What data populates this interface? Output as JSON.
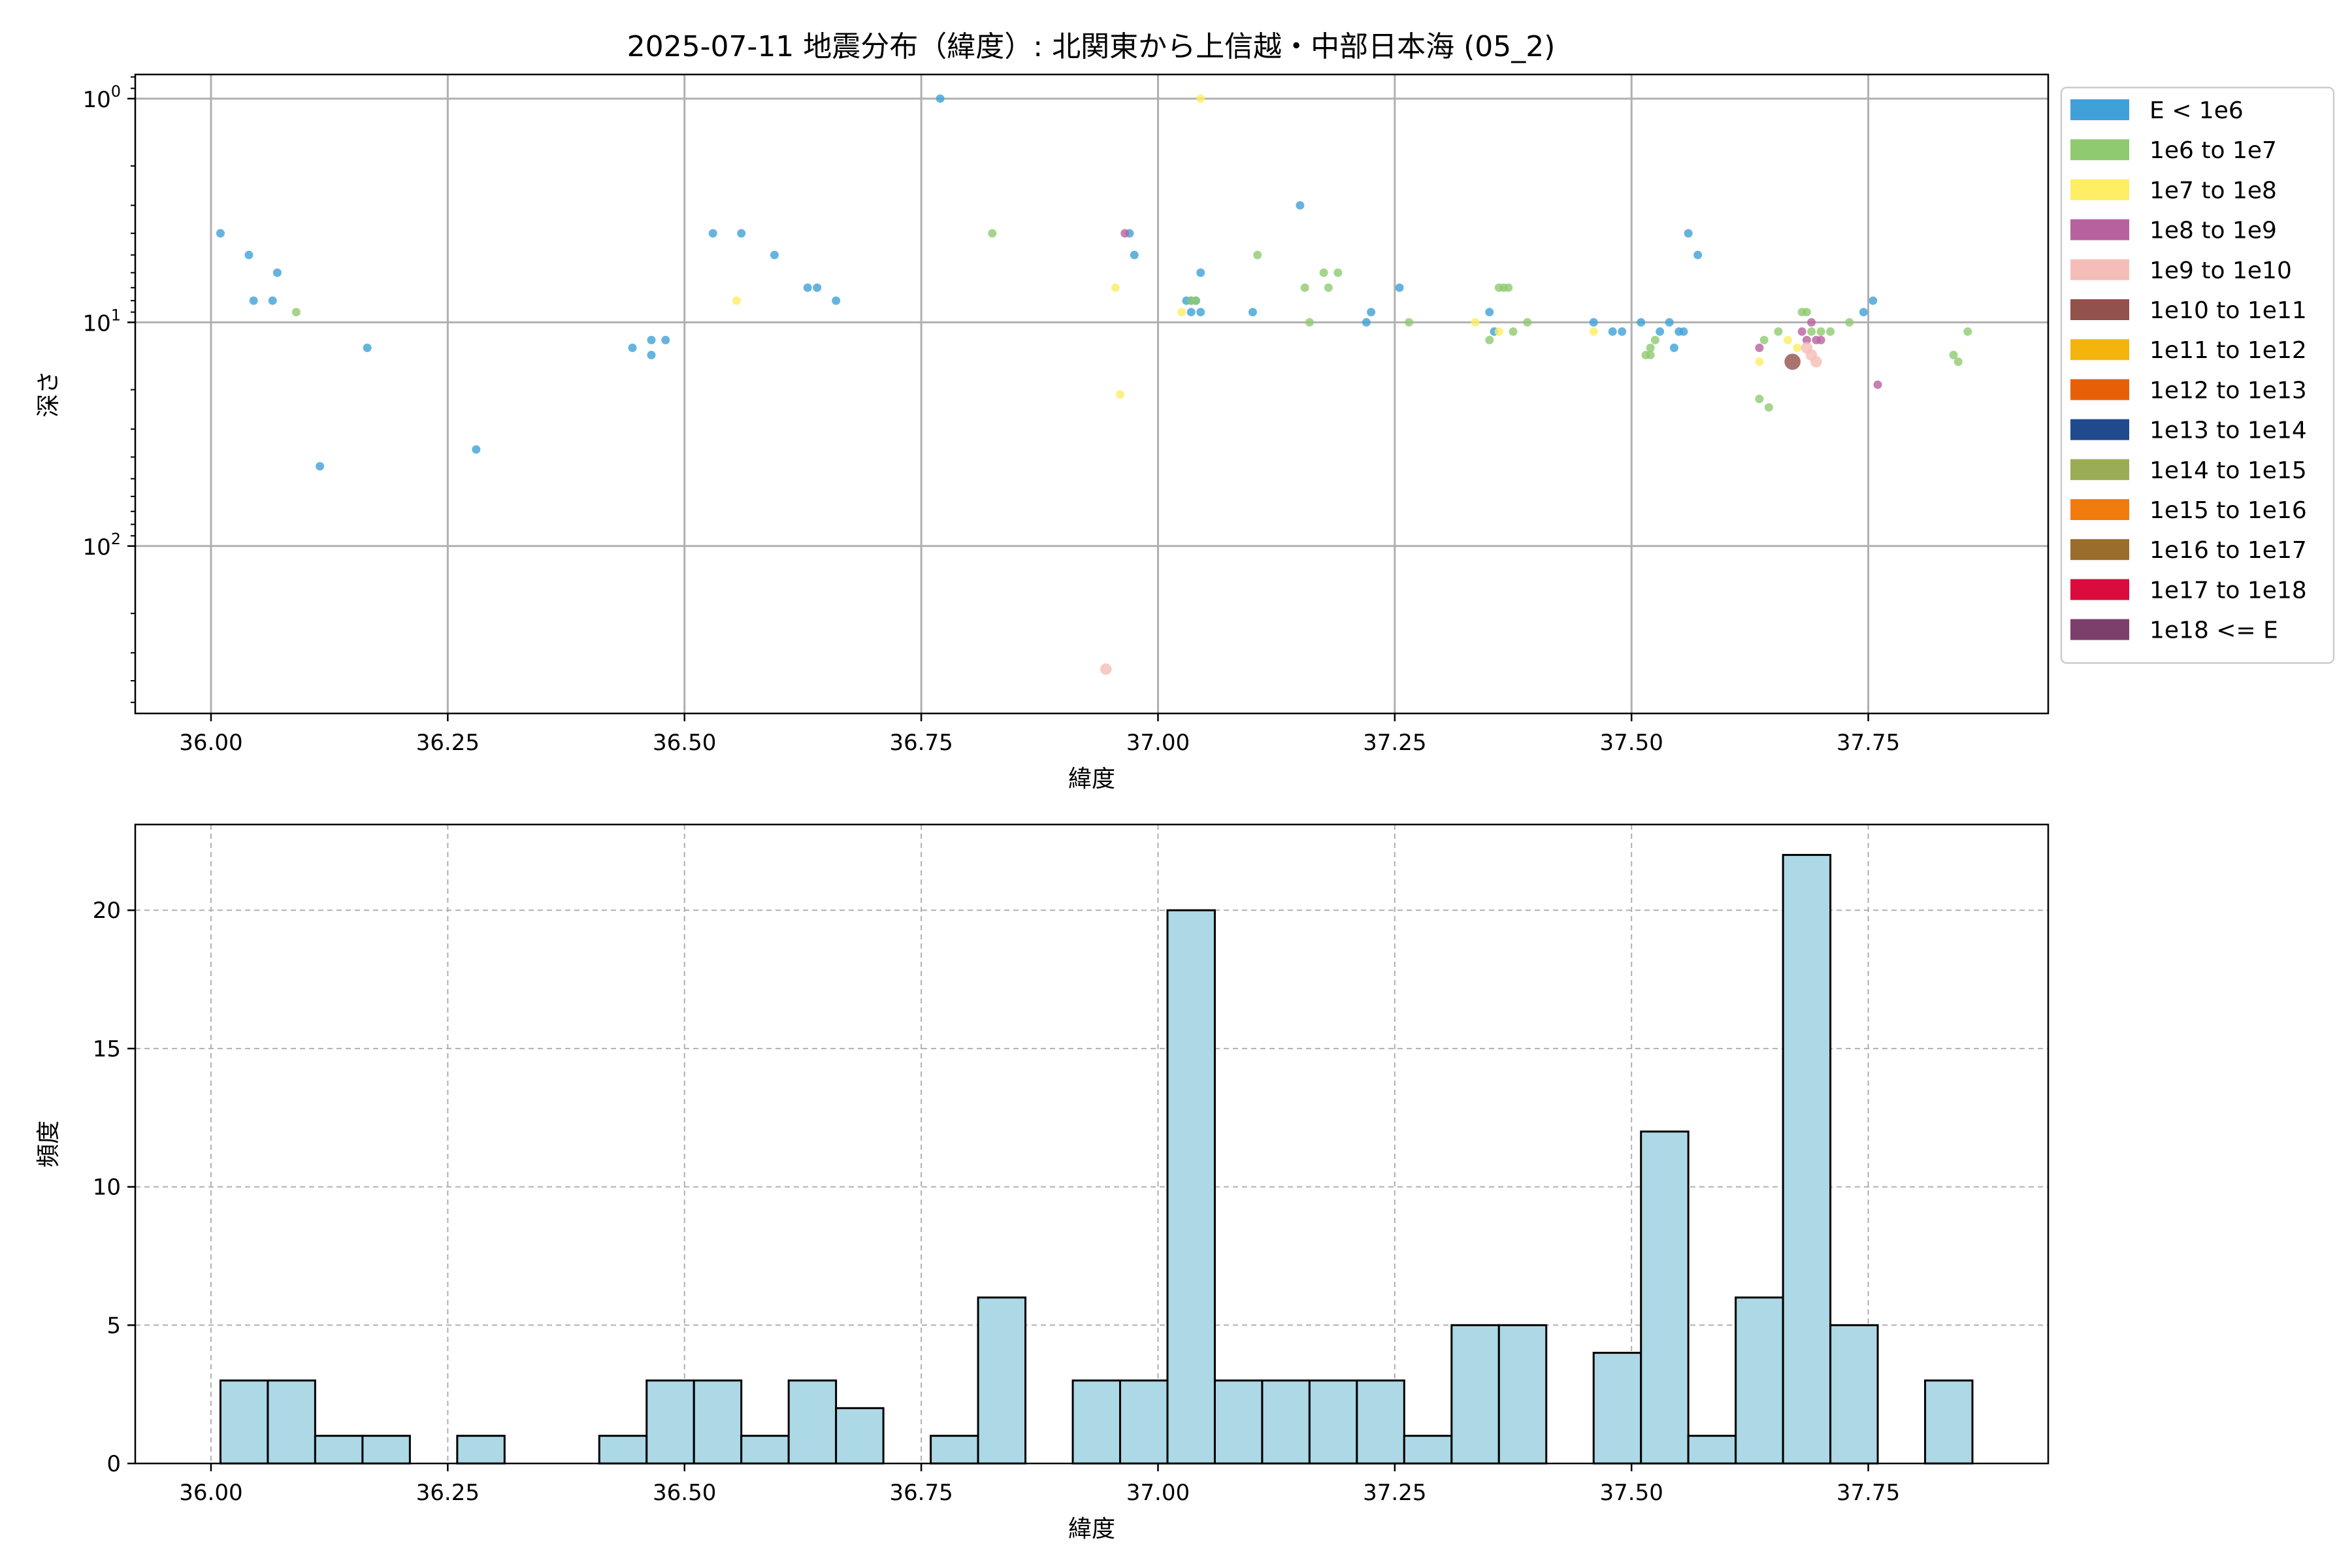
{
  "chart_data": [
    {
      "type": "scatter",
      "title": "2025-07-11 地震分布（緯度）: 北関東から上信越・中部日本海 (05_2)",
      "xlabel": "緯度",
      "ylabel": "深さ",
      "xlim": [
        35.92,
        37.94
      ],
      "y_scale": "log",
      "y_inverted": true,
      "ylim_depth": [
        0.78,
        560
      ],
      "x_ticks": [
        36.0,
        36.25,
        36.5,
        36.75,
        37.0,
        37.25,
        37.5,
        37.75
      ],
      "x_tick_labels": [
        "36.00",
        "36.25",
        "36.50",
        "36.75",
        "37.00",
        "37.25",
        "37.50",
        "37.75"
      ],
      "y_ticks": [
        1,
        10,
        100
      ],
      "y_tick_labels": [
        {
          "base": "10",
          "exp": "0"
        },
        {
          "base": "10",
          "exp": "1"
        },
        {
          "base": "10",
          "exp": "2"
        }
      ],
      "grid": true,
      "legend_position": "outside-right",
      "legend": [
        {
          "label": "E < 1e6",
          "color": "#3fa1d8"
        },
        {
          "label": "1e6 to 1e7",
          "color": "#8fca70"
        },
        {
          "label": "1e7 to 1e8",
          "color": "#fdee64"
        },
        {
          "label": "1e8 to 1e9",
          "color": "#b8619f"
        },
        {
          "label": "1e9 to 1e10",
          "color": "#f5bdb8"
        },
        {
          "label": "1e10 to 1e11",
          "color": "#93514b"
        },
        {
          "label": "1e11 to 1e12",
          "color": "#f5b40c"
        },
        {
          "label": "1e12 to 1e13",
          "color": "#e76008"
        },
        {
          "label": "1e13 to 1e14",
          "color": "#1f4a8e"
        },
        {
          "label": "1e14 to 1e15",
          "color": "#9aad55"
        },
        {
          "label": "1e15 to 1e16",
          "color": "#f27b0d"
        },
        {
          "label": "1e16 to 1e17",
          "color": "#9a6d2c"
        },
        {
          "label": "1e17 to 1e18",
          "color": "#dc0b3d"
        },
        {
          "label": "1e18 <= E",
          "color": "#7c3e6c"
        }
      ],
      "series": [
        {
          "color": "#3fa1d8",
          "size": 1,
          "points": [
            [
              36.01,
              4
            ],
            [
              36.04,
              5
            ],
            [
              36.045,
              8
            ],
            [
              36.065,
              8
            ],
            [
              36.07,
              6
            ],
            [
              36.115,
              44
            ],
            [
              36.165,
              13
            ],
            [
              36.28,
              37
            ],
            [
              36.445,
              13
            ],
            [
              36.465,
              12
            ],
            [
              36.465,
              14
            ],
            [
              36.48,
              12
            ],
            [
              36.53,
              4
            ],
            [
              36.56,
              4
            ],
            [
              36.595,
              5
            ],
            [
              36.63,
              7
            ],
            [
              36.64,
              7
            ],
            [
              36.66,
              8
            ],
            [
              36.77,
              1
            ],
            [
              36.97,
              4
            ],
            [
              36.975,
              5
            ],
            [
              37.03,
              8
            ],
            [
              37.035,
              8
            ],
            [
              37.035,
              9
            ],
            [
              37.045,
              9
            ],
            [
              37.045,
              6
            ],
            [
              37.04,
              8
            ],
            [
              37.1,
              9
            ],
            [
              37.15,
              3
            ],
            [
              37.22,
              10
            ],
            [
              37.225,
              9
            ],
            [
              37.255,
              7
            ],
            [
              37.35,
              9
            ],
            [
              37.355,
              11
            ],
            [
              37.46,
              10
            ],
            [
              37.48,
              11
            ],
            [
              37.49,
              11
            ],
            [
              37.51,
              10
            ],
            [
              37.53,
              11
            ],
            [
              37.54,
              10
            ],
            [
              37.545,
              13
            ],
            [
              37.55,
              11
            ],
            [
              37.555,
              11
            ],
            [
              37.56,
              4
            ],
            [
              37.57,
              5
            ],
            [
              37.745,
              9
            ],
            [
              37.755,
              8
            ]
          ]
        },
        {
          "color": "#8fca70",
          "size": 1,
          "points": [
            [
              36.09,
              9
            ],
            [
              36.825,
              4
            ],
            [
              37.035,
              8
            ],
            [
              37.04,
              8
            ],
            [
              37.105,
              5
            ],
            [
              37.155,
              7
            ],
            [
              37.16,
              10
            ],
            [
              37.175,
              6
            ],
            [
              37.18,
              7
            ],
            [
              37.19,
              6
            ],
            [
              37.265,
              10
            ],
            [
              37.35,
              12
            ],
            [
              37.36,
              7
            ],
            [
              37.365,
              7
            ],
            [
              37.37,
              7
            ],
            [
              37.375,
              11
            ],
            [
              37.39,
              10
            ],
            [
              37.515,
              14
            ],
            [
              37.52,
              13
            ],
            [
              37.525,
              12
            ],
            [
              37.52,
              14
            ],
            [
              37.635,
              22
            ],
            [
              37.64,
              12
            ],
            [
              37.645,
              24
            ],
            [
              37.655,
              11
            ],
            [
              37.68,
              9
            ],
            [
              37.685,
              9
            ],
            [
              37.69,
              11
            ],
            [
              37.7,
              11
            ],
            [
              37.71,
              11
            ],
            [
              37.73,
              10
            ],
            [
              37.84,
              14
            ],
            [
              37.845,
              15
            ],
            [
              37.855,
              11
            ]
          ]
        },
        {
          "color": "#fdee64",
          "size": 1,
          "points": [
            [
              36.555,
              8
            ],
            [
              36.955,
              7
            ],
            [
              36.96,
              21
            ],
            [
              37.025,
              9
            ],
            [
              37.045,
              1
            ],
            [
              37.335,
              10
            ],
            [
              37.36,
              11
            ],
            [
              37.46,
              11
            ],
            [
              37.635,
              15
            ],
            [
              37.665,
              12
            ],
            [
              37.675,
              13
            ]
          ]
        },
        {
          "color": "#b8619f",
          "size": 1,
          "points": [
            [
              36.965,
              4
            ],
            [
              37.635,
              13
            ],
            [
              37.68,
              11
            ],
            [
              37.69,
              10
            ],
            [
              37.695,
              12
            ],
            [
              37.7,
              12
            ],
            [
              37.685,
              12
            ],
            [
              37.76,
              19
            ]
          ]
        },
        {
          "color": "#f5bdb8",
          "size": 1.35,
          "points": [
            [
              36.945,
              355
            ],
            [
              37.685,
              13
            ],
            [
              37.69,
              14
            ],
            [
              37.695,
              15
            ]
          ]
        },
        {
          "color": "#93514b",
          "size": 1.9,
          "points": [
            [
              37.67,
              15
            ]
          ]
        }
      ]
    },
    {
      "type": "bar",
      "subtype": "histogram",
      "xlabel": "緯度",
      "ylabel": "頻度",
      "xlim": [
        35.92,
        37.94
      ],
      "ylim": [
        0,
        23.1
      ],
      "bar_color": "#add8e6",
      "edge_color": "#000000",
      "x_ticks": [
        36.0,
        36.25,
        36.5,
        36.75,
        37.0,
        37.25,
        37.5,
        37.75
      ],
      "x_tick_labels": [
        "36.00",
        "36.25",
        "36.50",
        "36.75",
        "37.00",
        "37.25",
        "37.50",
        "37.75"
      ],
      "y_ticks": [
        0,
        5,
        10,
        15,
        20
      ],
      "y_tick_labels": [
        "0",
        "5",
        "10",
        "15",
        "20"
      ],
      "grid": true,
      "bins": [
        {
          "x0": 36.01,
          "x1": 36.06,
          "value": 3
        },
        {
          "x0": 36.06,
          "x1": 36.11,
          "value": 3
        },
        {
          "x0": 36.11,
          "x1": 36.16,
          "value": 1
        },
        {
          "x0": 36.16,
          "x1": 36.21,
          "value": 1
        },
        {
          "x0": 36.26,
          "x1": 36.31,
          "value": 1
        },
        {
          "x0": 36.41,
          "x1": 36.46,
          "value": 1
        },
        {
          "x0": 36.46,
          "x1": 36.51,
          "value": 3
        },
        {
          "x0": 36.51,
          "x1": 36.56,
          "value": 3
        },
        {
          "x0": 36.56,
          "x1": 36.61,
          "value": 1
        },
        {
          "x0": 36.61,
          "x1": 36.66,
          "value": 3
        },
        {
          "x0": 36.66,
          "x1": 36.71,
          "value": 2
        },
        {
          "x0": 36.76,
          "x1": 36.81,
          "value": 1
        },
        {
          "x0": 36.81,
          "x1": 36.86,
          "value": 6
        },
        {
          "x0": 36.91,
          "x1": 36.96,
          "value": 3
        },
        {
          "x0": 36.96,
          "x1": 37.01,
          "value": 3
        },
        {
          "x0": 37.01,
          "x1": 37.06,
          "value": 20
        },
        {
          "x0": 37.06,
          "x1": 37.11,
          "value": 3
        },
        {
          "x0": 37.11,
          "x1": 37.16,
          "value": 3
        },
        {
          "x0": 37.16,
          "x1": 37.21,
          "value": 3
        },
        {
          "x0": 37.21,
          "x1": 37.26,
          "value": 3
        },
        {
          "x0": 37.26,
          "x1": 37.31,
          "value": 1
        },
        {
          "x0": 37.31,
          "x1": 37.36,
          "value": 5
        },
        {
          "x0": 37.36,
          "x1": 37.41,
          "value": 5
        },
        {
          "x0": 37.46,
          "x1": 37.51,
          "value": 4
        },
        {
          "x0": 37.51,
          "x1": 37.56,
          "value": 12
        },
        {
          "x0": 37.56,
          "x1": 37.61,
          "value": 1
        },
        {
          "x0": 37.61,
          "x1": 37.66,
          "value": 6
        },
        {
          "x0": 37.66,
          "x1": 37.71,
          "value": 22
        },
        {
          "x0": 37.71,
          "x1": 37.76,
          "value": 5
        },
        {
          "x0": 37.81,
          "x1": 37.86,
          "value": 3
        }
      ]
    }
  ]
}
